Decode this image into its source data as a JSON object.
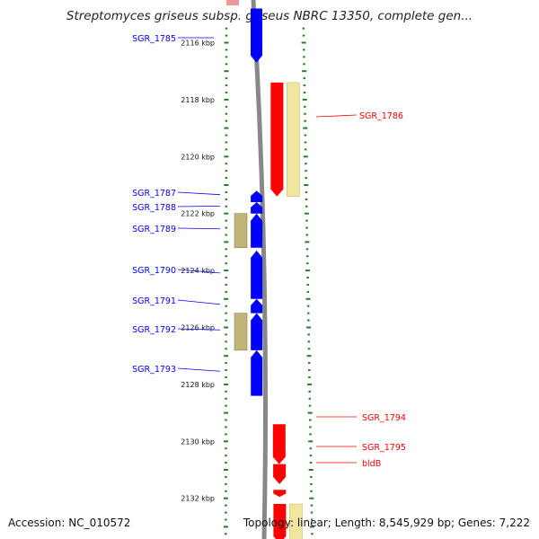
{
  "title": "Streptomyces griseus subsp. griseus NBRC 13350, complete gen...",
  "footer": {
    "accession": "Accession: NC_010572",
    "summary": "Topology: linear; Length: 8,545,929 bp; Genes: 7,222"
  },
  "colors": {
    "reverse_gene": "#0000ff",
    "forward_gene": "#ff0000",
    "forward_cds": "#f0e6a0",
    "reverse_cds": "#bfb57a",
    "tick": "#2a7a2a",
    "chromosome": "#888888"
  },
  "axis": {
    "ticks": [
      {
        "kbp": 2116,
        "label": "2116 kbp"
      },
      {
        "kbp": 2118,
        "label": "2118 kbp"
      },
      {
        "kbp": 2120,
        "label": "2120 kbp"
      },
      {
        "kbp": 2122,
        "label": "2122 kbp"
      },
      {
        "kbp": 2124,
        "label": "2124 kbp"
      },
      {
        "kbp": 2126,
        "label": "2126 kbp"
      },
      {
        "kbp": 2128,
        "label": "2128 kbp"
      },
      {
        "kbp": 2130,
        "label": "2130 kbp"
      },
      {
        "kbp": 2132,
        "label": "2132 kbp"
      }
    ]
  },
  "genes_reverse": [
    {
      "name": "SGR_1785",
      "start": 2114.8,
      "end": 2116.7,
      "cds": false
    },
    {
      "name": "SGR_1787",
      "start": 2121.2,
      "end": 2121.6,
      "cds": false
    },
    {
      "name": "SGR_1788",
      "start": 2121.6,
      "end": 2122.0,
      "cds": false
    },
    {
      "name": "SGR_1789",
      "start": 2122.0,
      "end": 2123.2,
      "cds": true
    },
    {
      "name": "SGR_1790",
      "start": 2123.3,
      "end": 2125.0,
      "cds": false
    },
    {
      "name": "SGR_1791",
      "start": 2125.0,
      "end": 2125.5,
      "cds": false
    },
    {
      "name": "SGR_1792",
      "start": 2125.5,
      "end": 2126.8,
      "cds": true
    },
    {
      "name": "SGR_1793",
      "start": 2126.8,
      "end": 2128.4,
      "cds": false
    }
  ],
  "genes_forward": [
    {
      "name": "SGR_1786",
      "start": 2117.4,
      "end": 2121.4,
      "cds": true
    },
    {
      "name": "SGR_1794",
      "start": 2129.4,
      "end": 2130.8,
      "cds": false
    },
    {
      "name": "SGR_1795",
      "start": 2130.8,
      "end": 2131.5,
      "cds": false
    },
    {
      "name": "bldB",
      "start": 2131.7,
      "end": 2131.95,
      "cds": false
    },
    {
      "name": "",
      "start": 2132.2,
      "end": 2134.0,
      "cds": true
    }
  ]
}
